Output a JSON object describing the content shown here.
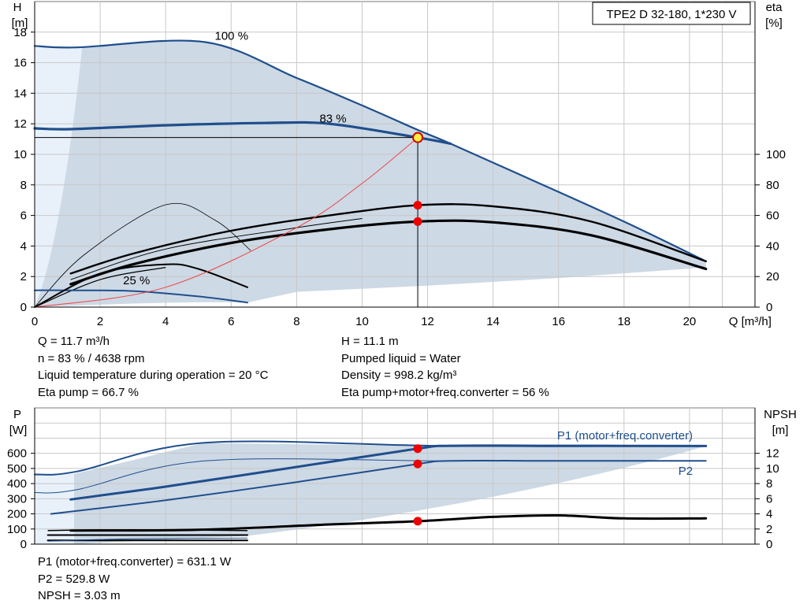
{
  "chart_data": [
    {
      "type": "line",
      "title": "TPE2 D 32-180, 1*230 V",
      "axes": {
        "x": {
          "label": "Q [m³/h]",
          "range": [
            0,
            22
          ],
          "ticks": [
            0,
            2,
            4,
            6,
            8,
            10,
            12,
            14,
            16,
            18,
            20
          ]
        },
        "y_left": {
          "label": [
            "H",
            "[m]"
          ],
          "range": [
            0,
            20
          ],
          "ticks": [
            0,
            2,
            4,
            6,
            8,
            10,
            12,
            14,
            16,
            18
          ]
        },
        "y_right": {
          "label": [
            "eta",
            "[%]"
          ],
          "range": [
            0,
            200
          ],
          "ticks": [
            0,
            20,
            40,
            60,
            80,
            100
          ]
        }
      },
      "grid": true,
      "speed_labels": [
        "100 %",
        "83 %",
        "25 %"
      ],
      "series": [
        {
          "role": "h-100",
          "axis": "left",
          "color": "#1f4e8c",
          "x": [
            0,
            1.3,
            5.2,
            8,
            10,
            11.7,
            12.7,
            15,
            18,
            20.5
          ],
          "y": [
            17.1,
            17.0,
            17.35,
            15.0,
            13.2,
            11.6,
            10.7,
            8.5,
            5.6,
            3.0
          ]
        },
        {
          "role": "h-83",
          "axis": "left",
          "color": "#1f4e8c",
          "x": [
            0,
            1.1,
            4,
            7,
            9,
            11.7,
            12.7
          ],
          "y": [
            11.7,
            11.65,
            11.9,
            12.05,
            12.0,
            11.1,
            10.7
          ]
        },
        {
          "role": "h-25",
          "axis": "left",
          "color": "#1f4e8c",
          "x": [
            0,
            1,
            3,
            5,
            6.5
          ],
          "y": [
            1.1,
            1.1,
            1.05,
            0.7,
            0.3
          ]
        },
        {
          "role": "eta-pump",
          "axis": "right",
          "color": "#000000",
          "x": [
            1.1,
            3,
            6,
            9,
            11.7,
            14,
            17,
            20.5
          ],
          "y": [
            22,
            35,
            50,
            60,
            66.7,
            66,
            56,
            30
          ]
        },
        {
          "role": "eta-total",
          "axis": "right",
          "color": "#000000",
          "x": [
            1.1,
            3,
            6,
            9,
            11.7,
            14,
            17,
            20.5
          ],
          "y": [
            15,
            28,
            42,
            51,
            56,
            55.5,
            47,
            25
          ]
        },
        {
          "role": "eta-low-speed",
          "axis": "right",
          "color": "#000000",
          "x": [
            0,
            2,
            4,
            5,
            6.5
          ],
          "y": [
            0,
            22,
            28,
            25,
            13
          ]
        },
        {
          "role": "system-curve",
          "axis": "left",
          "color": "#ee4444",
          "x": [
            0,
            4,
            8,
            10,
            11.7
          ],
          "y": [
            0,
            1.3,
            5.2,
            8.1,
            11.1
          ]
        }
      ],
      "duty_point": {
        "x": 11.7,
        "y": 11.1,
        "eta_pump": 66.7,
        "eta_total": 56
      }
    },
    {
      "type": "line",
      "axes": {
        "x": {
          "range": [
            0,
            22
          ]
        },
        "y_left": {
          "label": [
            "P",
            "[W]"
          ],
          "range": [
            0,
            900
          ],
          "ticks": [
            0,
            100,
            200,
            300,
            400,
            500,
            600
          ]
        },
        "y_right": {
          "label": [
            "NPSH",
            "[m]"
          ],
          "range": [
            0,
            18
          ],
          "ticks": [
            0,
            2,
            4,
            6,
            8,
            10,
            12
          ]
        }
      },
      "grid": true,
      "series": [
        {
          "name": "P1 (motor+freq.converter)",
          "axis": "left",
          "color": "#1f4e8c",
          "x": [
            1.1,
            4,
            8,
            11.7,
            12.7,
            16,
            20.5
          ],
          "y": [
            295,
            380,
            510,
            631.1,
            650,
            650,
            648
          ]
        },
        {
          "name": "P2",
          "axis": "left",
          "color": "#1f4e8c",
          "x": [
            0.5,
            4,
            8,
            11.7,
            12.7,
            16,
            20.5
          ],
          "y": [
            200,
            290,
            410,
            529.8,
            550,
            550,
            550
          ]
        },
        {
          "role": "p1-max",
          "axis": "left",
          "color": "#1f4e8c",
          "x": [
            0,
            1.3,
            5.2,
            12.7,
            20.5
          ],
          "y": [
            460,
            480,
            670,
            648,
            648
          ]
        },
        {
          "role": "p2-max",
          "axis": "left",
          "color": "#1f4e8c",
          "x": [
            0,
            1.3,
            5.2,
            12.7,
            20.5
          ],
          "y": [
            340,
            360,
            550,
            550,
            550
          ]
        },
        {
          "role": "npsh",
          "axis": "right",
          "color": "#000000",
          "x": [
            1.1,
            5,
            9,
            11.7,
            14,
            16,
            18,
            20.5
          ],
          "y": [
            1.8,
            1.9,
            2.6,
            3.03,
            3.6,
            3.8,
            3.4,
            3.4
          ]
        },
        {
          "role": "low-speed-1",
          "axis": "left",
          "color": "#000000",
          "x": [
            0.4,
            6.5
          ],
          "y": [
            60,
            60
          ]
        },
        {
          "role": "low-speed-2",
          "axis": "left",
          "color": "#000000",
          "x": [
            0.4,
            6.5
          ],
          "y": [
            25,
            25
          ]
        }
      ],
      "duty_point": {
        "x": 11.7,
        "p1": 631.1,
        "p2": 529.8,
        "npsh": 3.03
      }
    }
  ],
  "info_top_left": [
    "Q = 11.7 m³/h",
    "n = 83 % / 4638 rpm",
    "Liquid temperature during operation = 20 °C",
    "Eta pump = 66.7 %"
  ],
  "info_top_right": [
    "H = 11.1 m",
    "Pumped liquid = Water",
    "Density = 998.2 kg/m³",
    "Eta pump+motor+freq.converter = 56 %"
  ],
  "info_bottom": [
    "P1 (motor+freq.converter) = 631.1 W",
    "P2 = 529.8 W",
    "NPSH = 3.03 m"
  ],
  "colors": {
    "curve": "#1f4e8c",
    "area": "#cdd9e5",
    "area_light": "#e8f1fa",
    "grid": "#c8c8c8",
    "marker": "#ee0000",
    "system": "#ee4444"
  }
}
